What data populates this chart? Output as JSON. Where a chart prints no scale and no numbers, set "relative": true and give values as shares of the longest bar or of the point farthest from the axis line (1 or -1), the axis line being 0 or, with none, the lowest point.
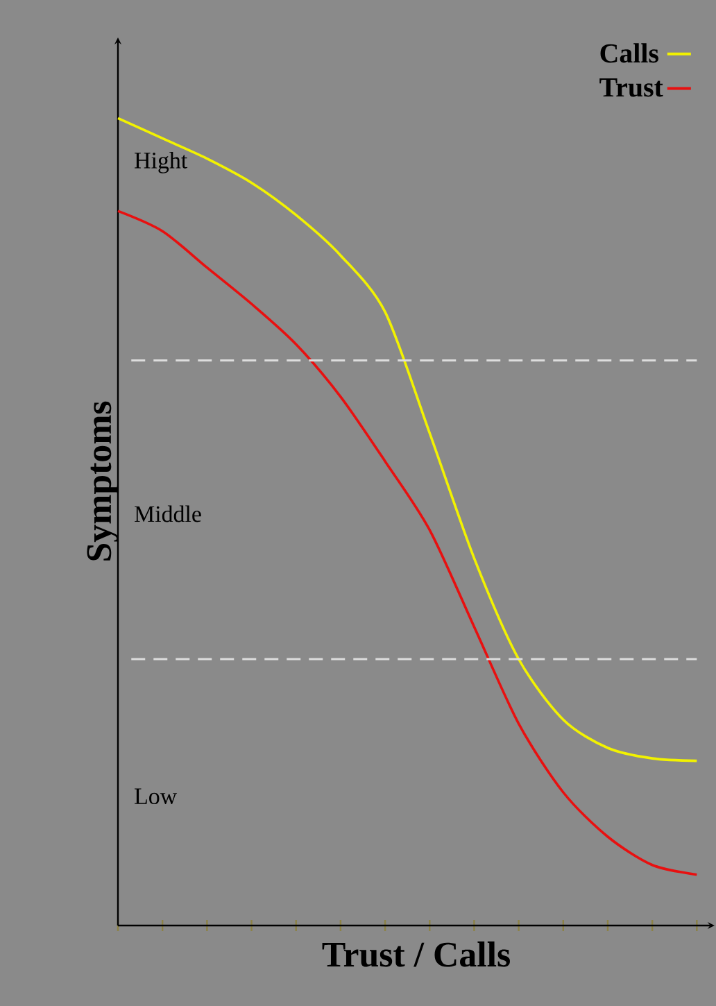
{
  "chart_data": {
    "type": "line",
    "relative": true,
    "xlabel": "Trust / Calls",
    "ylabel": "Symptoms",
    "categories": [
      null,
      null,
      null,
      null,
      null,
      null,
      null,
      null,
      null,
      null,
      null,
      null,
      null,
      null
    ],
    "series": [
      {
        "name": "Calls",
        "color": "#f2f200",
        "values": [
          1.0,
          0.975,
          0.95,
          0.92,
          0.88,
          0.83,
          0.76,
          0.61,
          0.455,
          0.33,
          0.255,
          0.22,
          0.207,
          0.204
        ]
      },
      {
        "name": "Trust",
        "color": "#e81010",
        "values": [
          0.885,
          0.86,
          0.815,
          0.77,
          0.72,
          0.655,
          0.575,
          0.49,
          0.37,
          0.25,
          0.165,
          0.11,
          0.075,
          0.063
        ]
      }
    ],
    "ref_lines": [
      {
        "axis": "y",
        "value": 0.7,
        "color": "#dddddd",
        "line_style": "dashed"
      },
      {
        "axis": "y",
        "value": 0.33,
        "color": "#dddddd",
        "line_style": "dashed"
      }
    ],
    "annotations": [
      "Hight",
      "Middle",
      "Low"
    ],
    "legend": "top right",
    "grid": false,
    "marker": "none",
    "line_style": "solid"
  }
}
